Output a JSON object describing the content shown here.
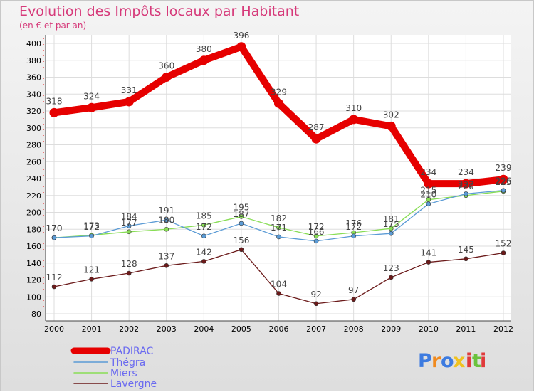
{
  "chart_data": {
    "type": "line",
    "title": "Evolution des Impôts locaux par Habitant",
    "subtitle": "(en € et par an)",
    "x": [
      "2000",
      "2001",
      "2002",
      "2003",
      "2004",
      "2005",
      "2006",
      "2007",
      "2008",
      "2009",
      "2010",
      "2011",
      "2012"
    ],
    "ylim": [
      80,
      400
    ],
    "yticks": [
      80,
      100,
      120,
      140,
      160,
      180,
      200,
      220,
      240,
      260,
      280,
      300,
      320,
      340,
      360,
      380,
      400
    ],
    "grid": true,
    "legend_position": "bottom-left",
    "series": [
      {
        "name": "PADIRAC",
        "color": "#e60000",
        "values": [
          318,
          324,
          331,
          360,
          380,
          396,
          329,
          287,
          310,
          302,
          234,
          234,
          239
        ]
      },
      {
        "name": "Thégra",
        "color": "#5b9bd5",
        "values": [
          170,
          172,
          184,
          191,
          172,
          187,
          171,
          166,
          172,
          175,
          210,
          222,
          226
        ]
      },
      {
        "name": "Miers",
        "color": "#88dd55",
        "values": [
          170,
          173,
          177,
          180,
          185,
          195,
          182,
          172,
          176,
          181,
          215,
          220,
          225
        ]
      },
      {
        "name": "Lavergne",
        "color": "#6b1a1a",
        "values": [
          112,
          121,
          128,
          137,
          142,
          156,
          104,
          92,
          97,
          123,
          141,
          145,
          152
        ]
      }
    ],
    "data_label_texts": [
      [
        "318",
        "324",
        "331",
        "360",
        "380",
        "396",
        "329",
        "287",
        "310",
        "302",
        "234",
        "234",
        "239"
      ],
      [
        "170",
        "172",
        "184",
        "191",
        "172",
        "187",
        "171",
        "166",
        "172",
        "175",
        "210",
        "222",
        "226"
      ],
      [
        "170",
        "173",
        "177",
        "180",
        "185",
        "195",
        "182",
        "172",
        "176",
        "181",
        "215",
        "220",
        "225"
      ],
      [
        "112",
        "121",
        "128",
        "137",
        "142",
        "156",
        "104",
        "92",
        "97",
        "123",
        "141",
        "145",
        "152"
      ]
    ]
  },
  "brand": {
    "name": "Proxiti",
    "letters": [
      "P",
      "r",
      "o",
      "x",
      "i",
      "t",
      "i"
    ],
    "colors": [
      "#3d7be0",
      "#f08a1f",
      "#3d7be0",
      "#f0c21f",
      "#e03a3a",
      "#6ac23d",
      "#e03a3a"
    ]
  }
}
